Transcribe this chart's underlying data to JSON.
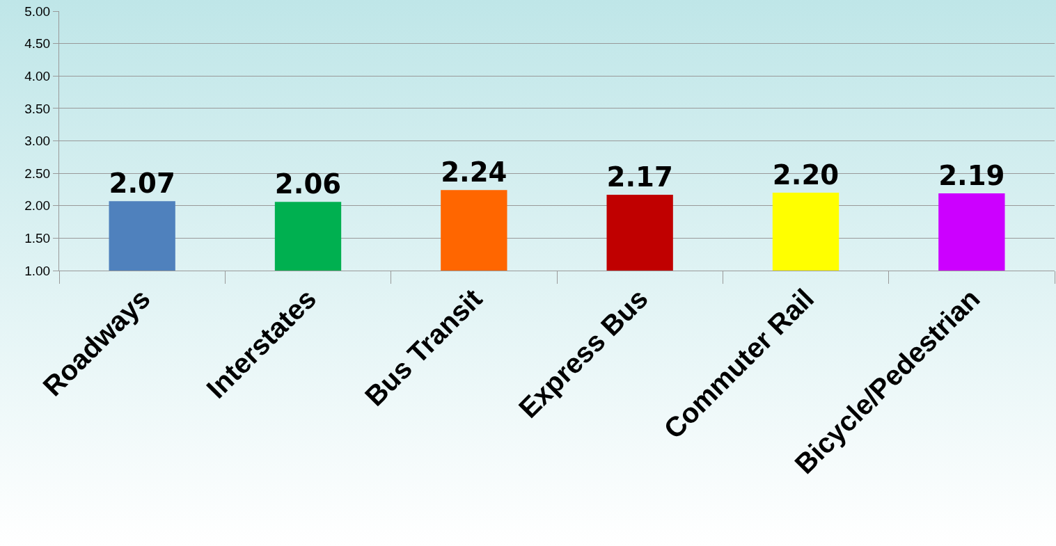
{
  "chart_data": {
    "type": "bar",
    "categories": [
      "Roadways",
      "Interstates",
      "Bus Transit",
      "Express Bus",
      "Commuter Rail",
      "Bicycle/Pedestrian"
    ],
    "values": [
      2.07,
      2.06,
      2.24,
      2.17,
      2.2,
      2.19
    ],
    "value_labels": [
      "2.07",
      "2.06",
      "2.24",
      "2.17",
      "2.20",
      "2.19"
    ],
    "colors": [
      "#4f81bd",
      "#00b050",
      "#ff6600",
      "#c00000",
      "#ffff00",
      "#cc00ff"
    ],
    "ylim": [
      1,
      5
    ],
    "yticks": [
      {
        "value": 1,
        "label": "1.00"
      },
      {
        "value": 1.5,
        "label": "1.50"
      },
      {
        "value": 2,
        "label": "2.00"
      },
      {
        "value": 2.5,
        "label": "2.50"
      },
      {
        "value": 3,
        "label": "3.00"
      },
      {
        "value": 3.5,
        "label": "3.50"
      },
      {
        "value": 4,
        "label": "4.00"
      },
      {
        "value": 4.5,
        "label": "4.50"
      },
      {
        "value": 5,
        "label": "5.00"
      }
    ],
    "grid": "y"
  }
}
